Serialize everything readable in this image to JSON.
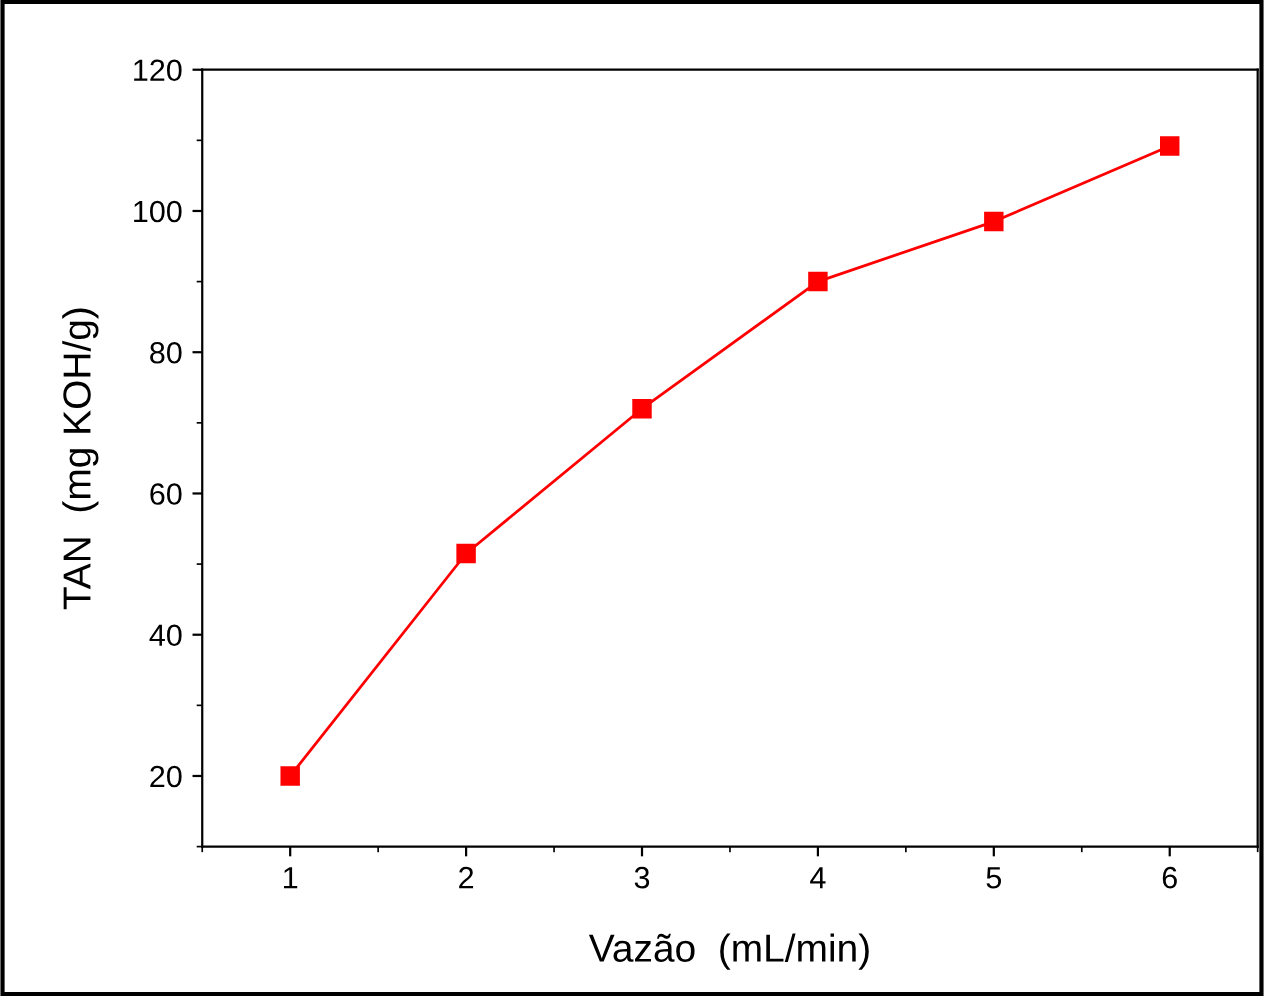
{
  "chart_data": {
    "type": "line",
    "xlabel": "Vazão  (mL/min)",
    "ylabel": "TAN  (mg KOH/g)",
    "x": [
      1,
      2,
      3,
      4,
      5,
      6
    ],
    "series": [
      {
        "color": "#ff0000",
        "values": [
          20,
          51.5,
          72,
          90,
          98.5,
          109.2
        ]
      }
    ],
    "xlim": [
      0.5,
      6.5
    ],
    "ylim": [
      10,
      120
    ],
    "xticks": [
      1,
      2,
      3,
      4,
      5,
      6
    ],
    "yticks": [
      20,
      40,
      60,
      80,
      100,
      120
    ],
    "marker": "square",
    "line_style": "solid",
    "grid": false,
    "legend": false
  }
}
